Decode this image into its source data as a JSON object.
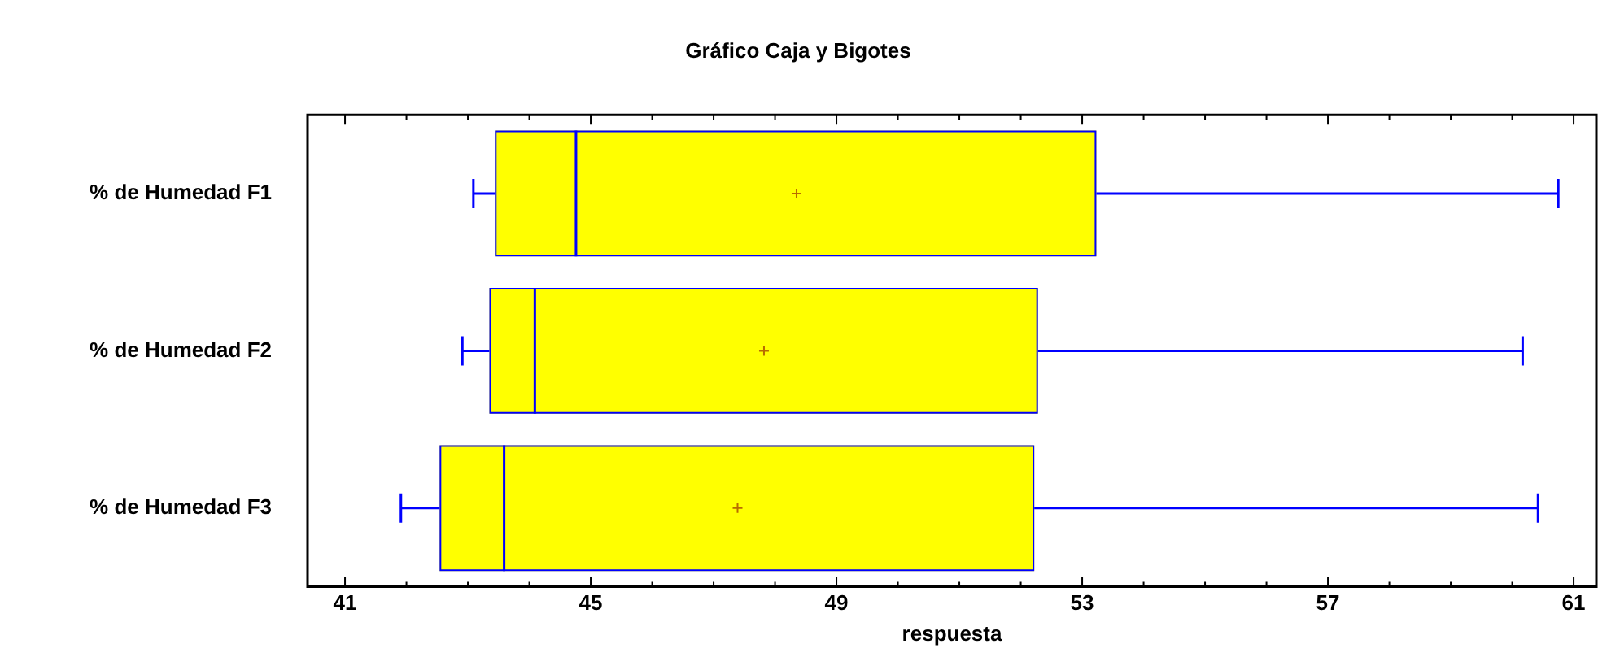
{
  "chart_data": {
    "type": "box",
    "orientation": "horizontal",
    "title": "Gráfico Caja y Bigotes",
    "xlabel": "respuesta",
    "categories": [
      "% de Humedad F1",
      "% de Humedad F2",
      "% de Humedad F3"
    ],
    "color": "#ffff00",
    "boxes": [
      {
        "low": 43.09,
        "q1": 43.44,
        "median": 44.76,
        "q3": 53.23,
        "high": 60.75,
        "mean": 48.35
      },
      {
        "low": 42.91,
        "q1": 43.35,
        "median": 44.09,
        "q3": 52.28,
        "high": 60.17,
        "mean": 47.82
      },
      {
        "low": 41.91,
        "q1": 42.54,
        "median": 43.59,
        "q3": 52.22,
        "high": 60.42,
        "mean": 47.39
      }
    ],
    "xlim": [
      40.39,
      61.37
    ],
    "xticks": [
      41,
      {
        "value": 42,
        "label": null
      },
      {
        "value": 43,
        "label": null
      },
      {
        "value": 44,
        "label": null
      },
      45,
      {
        "value": 46,
        "label": null
      },
      {
        "value": 47,
        "label": null
      },
      {
        "value": 48,
        "label": null
      },
      49,
      {
        "value": 50,
        "label": null
      },
      {
        "value": 51,
        "label": null
      },
      {
        "value": 52,
        "label": null
      },
      53,
      {
        "value": 54,
        "label": null
      },
      {
        "value": 55,
        "label": null
      },
      {
        "value": 56,
        "label": null
      },
      57,
      {
        "value": 58,
        "label": null
      },
      {
        "value": 59,
        "label": null
      },
      {
        "value": 60,
        "label": null
      },
      61
    ]
  }
}
